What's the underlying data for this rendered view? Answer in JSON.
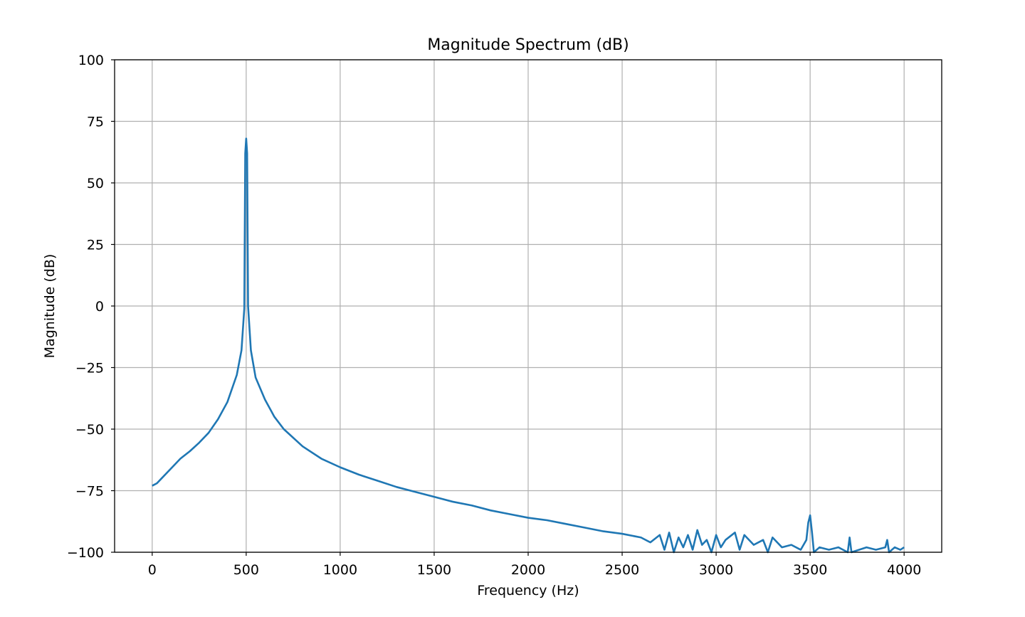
{
  "chart_data": {
    "type": "line",
    "title": "Magnitude Spectrum (dB)",
    "x_label": "Frequency (Hz)",
    "y_label": "Magnitude (dB)",
    "x": [
      0,
      25,
      50,
      100,
      150,
      200,
      250,
      300,
      350,
      400,
      450,
      475,
      490,
      495,
      500,
      505,
      510,
      525,
      550,
      600,
      650,
      700,
      800,
      900,
      1000,
      1100,
      1200,
      1300,
      1400,
      1500,
      1600,
      1700,
      1800,
      1900,
      2000,
      2100,
      2200,
      2300,
      2400,
      2500,
      2600,
      2650,
      2700,
      2725,
      2750,
      2775,
      2800,
      2825,
      2850,
      2875,
      2900,
      2925,
      2950,
      2975,
      3000,
      3025,
      3050,
      3100,
      3125,
      3150,
      3200,
      3250,
      3275,
      3300,
      3350,
      3400,
      3450,
      3480,
      3490,
      3500,
      3510,
      3520,
      3550,
      3600,
      3650,
      3700,
      3710,
      3720,
      3800,
      3850,
      3900,
      3910,
      3920,
      3950,
      3980,
      4000
    ],
    "series": [
      {
        "name": "Magnitude",
        "color": "#1f77b4",
        "values": [
          -73,
          -72,
          -70,
          -66,
          -62,
          -59,
          -55.5,
          -51.5,
          -46,
          -39,
          -28,
          -18,
          -1,
          62,
          68,
          62,
          0,
          -18,
          -29,
          -38,
          -45,
          -50,
          -57,
          -62,
          -65.5,
          -68.5,
          -71,
          -73.5,
          -75.5,
          -77.5,
          -79.5,
          -81,
          -83,
          -84.5,
          -86,
          -87,
          -88.5,
          -90,
          -91.5,
          -92.5,
          -94,
          -96,
          -93,
          -99,
          -92,
          -100,
          -94,
          -98,
          -93,
          -99,
          -91,
          -97,
          -95,
          -100,
          -93,
          -98,
          -95,
          -92,
          -99,
          -93,
          -97,
          -95,
          -100,
          -94,
          -98,
          -97,
          -99,
          -95,
          -88,
          -85,
          -92,
          -100,
          -98,
          -99,
          -98,
          -100,
          -94,
          -100,
          -98,
          -99,
          -98,
          -95,
          -100,
          -98,
          -99,
          -98
        ]
      }
    ],
    "xlim": [
      -200,
      4200
    ],
    "ylim": [
      -100,
      100
    ],
    "xticks": [
      0,
      500,
      1000,
      1500,
      2000,
      2500,
      3000,
      3500,
      4000
    ],
    "yticks": [
      {
        "value": -100,
        "label": "−100"
      },
      {
        "value": -75,
        "label": "−75"
      },
      {
        "value": -50,
        "label": "−50"
      },
      {
        "value": -25,
        "label": "−25"
      },
      0,
      25,
      50,
      75,
      100
    ],
    "grid": true
  }
}
